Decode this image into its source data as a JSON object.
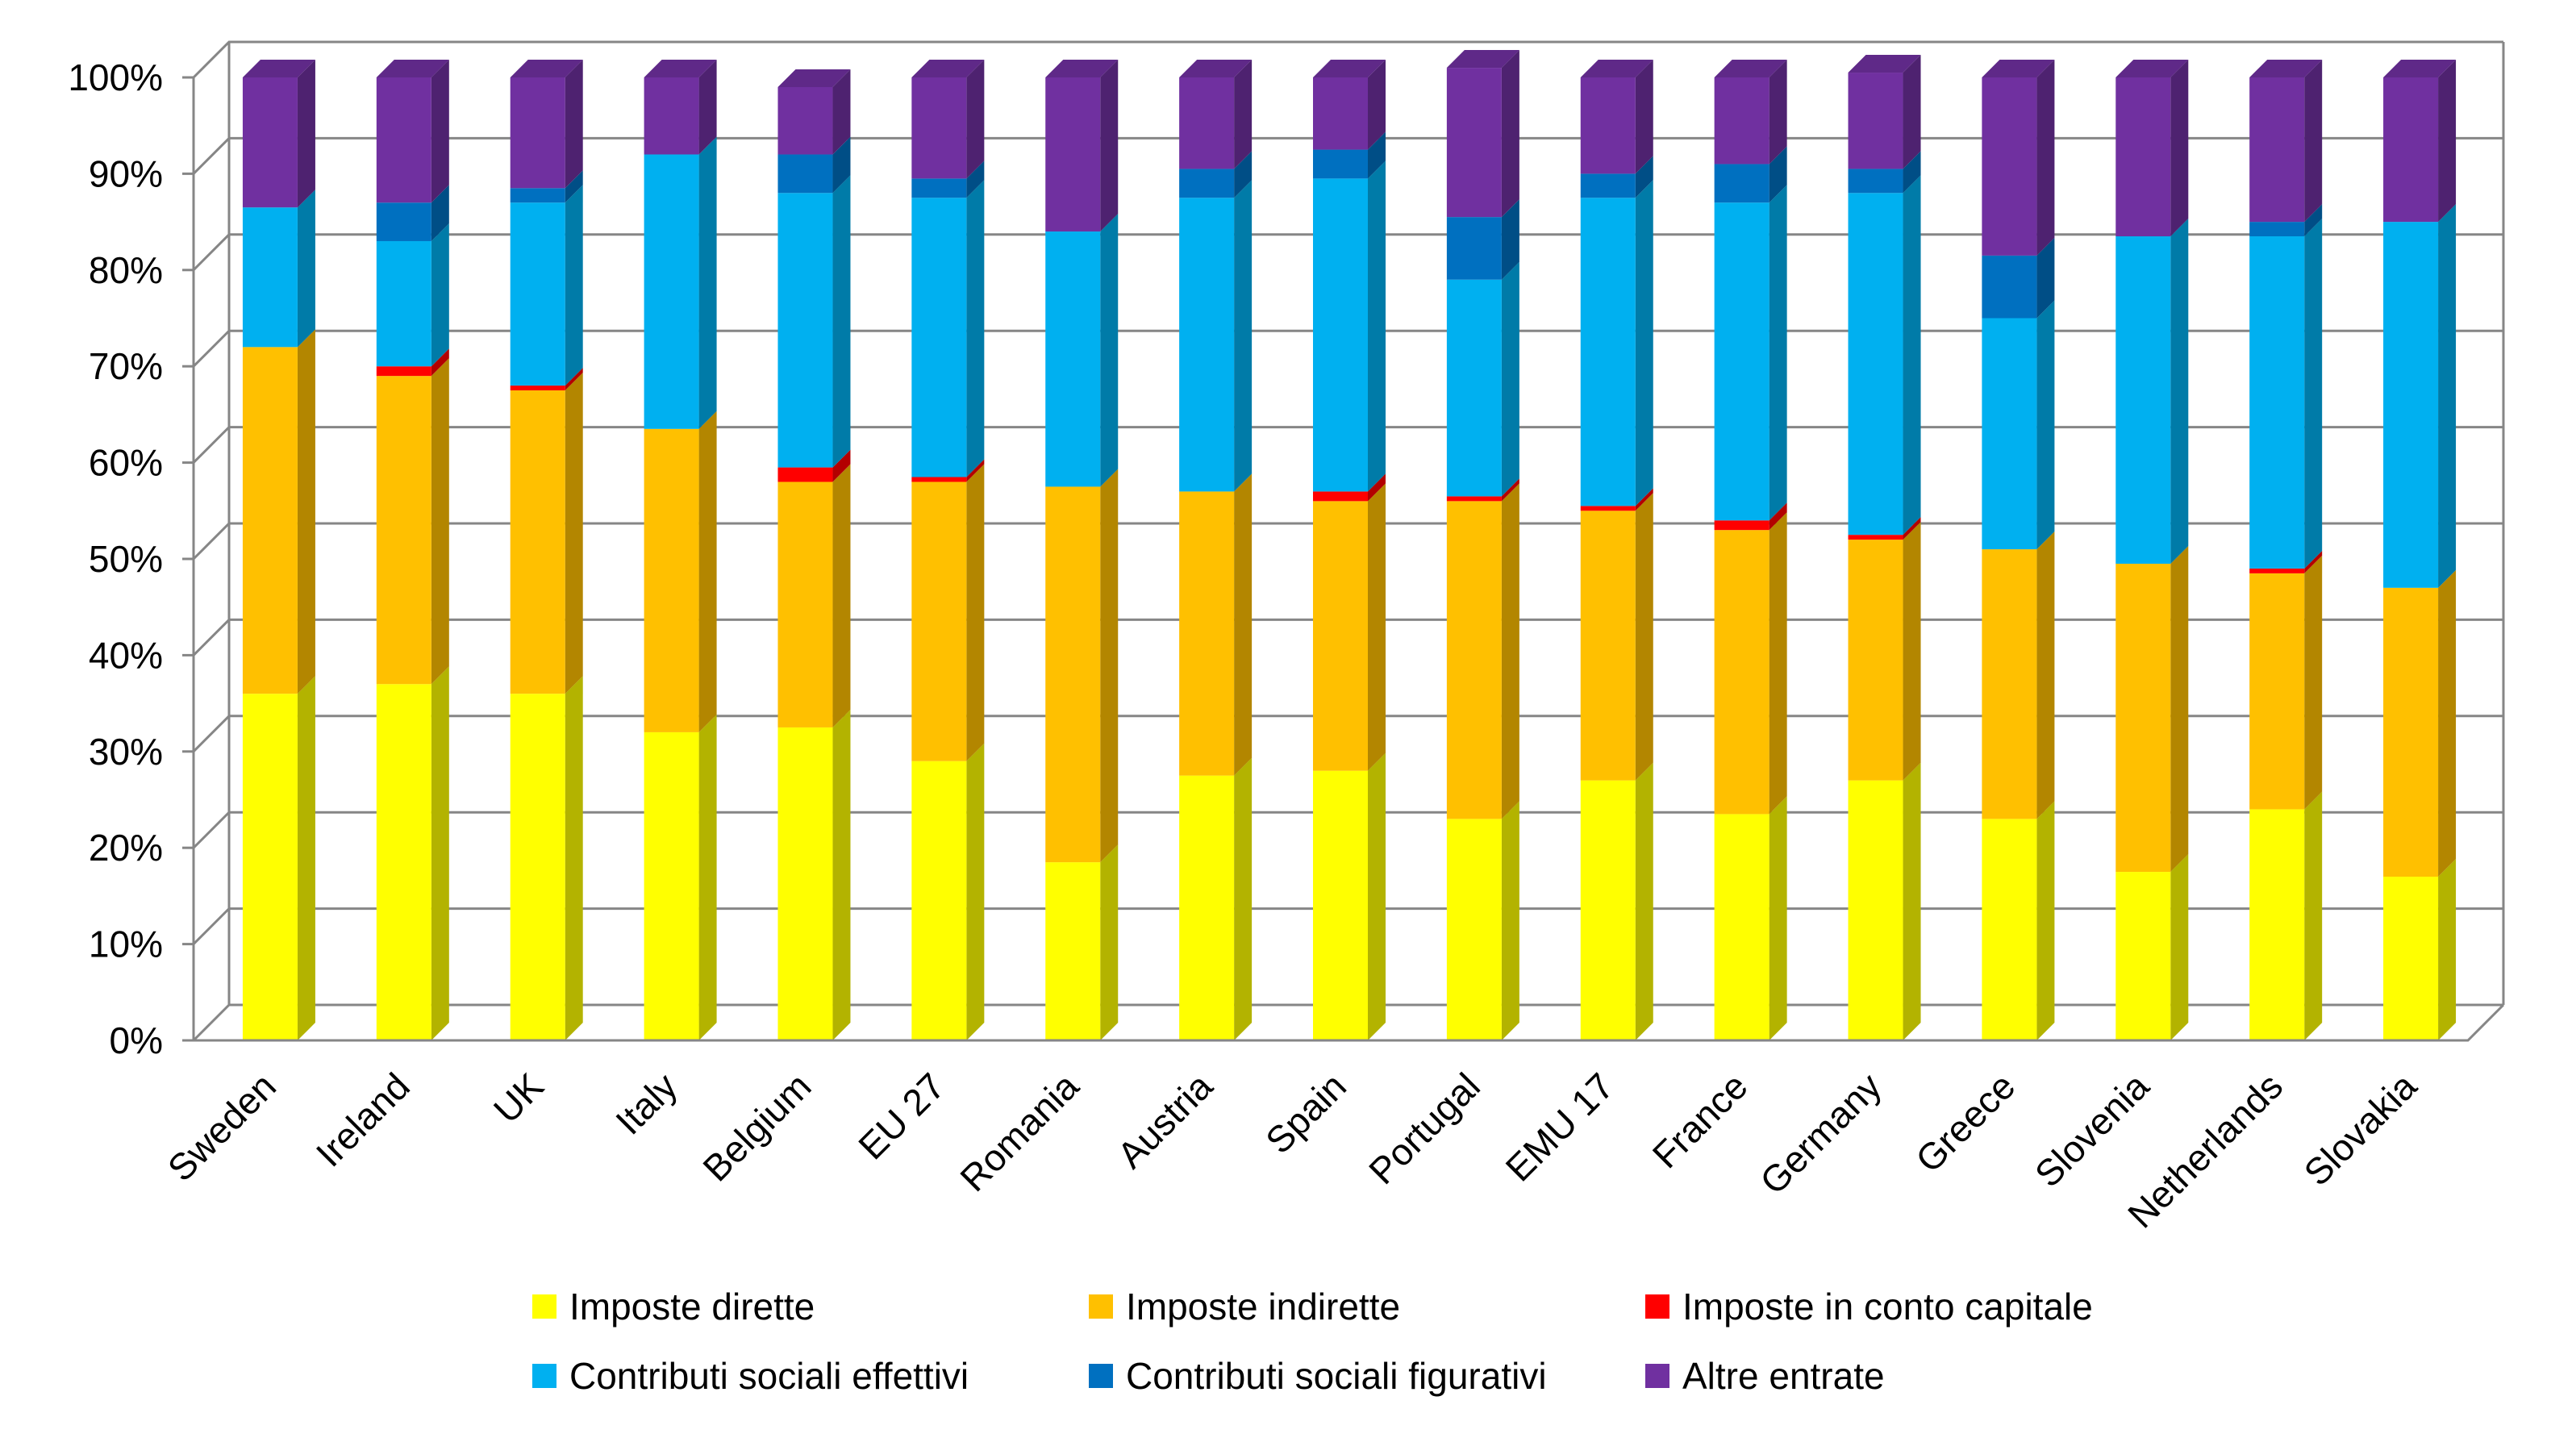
{
  "chart_data": {
    "type": "bar",
    "stacked": true,
    "style": "3d-stacked-100-percent",
    "categories": [
      "Sweden",
      "Ireland",
      "UK",
      "Italy",
      "Belgium",
      "EU 27",
      "Romania",
      "Austria",
      "Spain",
      "Portugal",
      "EMU 17",
      "France",
      "Germany",
      "Greece",
      "Slovenia",
      "Netherlands",
      "Slovakia"
    ],
    "series": [
      {
        "name": "Imposte dirette",
        "color": "#FFFF00",
        "values": [
          36.0,
          37.0,
          36.0,
          32.0,
          32.5,
          29.0,
          18.5,
          27.5,
          28.0,
          23.0,
          27.0,
          23.5,
          27.0,
          23.0,
          17.5,
          24.0,
          17.0
        ]
      },
      {
        "name": "Imposte indirette",
        "color": "#FFC000",
        "values": [
          36.0,
          32.0,
          31.5,
          31.5,
          25.5,
          29.0,
          39.0,
          29.5,
          28.0,
          33.0,
          28.0,
          29.5,
          25.0,
          28.0,
          32.0,
          24.5,
          30.0
        ]
      },
      {
        "name": "Imposte in conto capitale",
        "color": "#FF0000",
        "values": [
          0.0,
          1.0,
          0.5,
          0.0,
          1.5,
          0.5,
          0.0,
          0.0,
          1.0,
          0.5,
          0.5,
          1.0,
          0.5,
          0.0,
          0.0,
          0.5,
          0.0
        ]
      },
      {
        "name": "Contributi sociali effettivi",
        "color": "#00B0F0",
        "values": [
          14.5,
          13.0,
          19.0,
          28.5,
          28.5,
          29.0,
          26.5,
          30.5,
          32.5,
          22.5,
          32.0,
          33.0,
          35.5,
          24.0,
          34.0,
          34.5,
          38.0
        ]
      },
      {
        "name": "Contributi sociali figurativi",
        "color": "#0070C0",
        "values": [
          0.0,
          4.0,
          1.5,
          0.0,
          4.0,
          2.0,
          0.0,
          3.0,
          3.0,
          6.5,
          2.5,
          4.0,
          2.5,
          6.5,
          0.0,
          1.5,
          0.0
        ]
      },
      {
        "name": "Altre entrate",
        "color": "#7030A0",
        "values": [
          13.5,
          13.0,
          11.5,
          8.0,
          7.0,
          10.5,
          16.0,
          9.5,
          7.5,
          15.5,
          10.0,
          9.0,
          10.0,
          18.5,
          16.5,
          15.0,
          15.0
        ]
      }
    ],
    "ylim": [
      0,
      100
    ],
    "yticks": [
      "0%",
      "10%",
      "20%",
      "30%",
      "40%",
      "50%",
      "60%",
      "70%",
      "80%",
      "90%",
      "100%"
    ],
    "grid": true,
    "legend_position": "bottom"
  }
}
